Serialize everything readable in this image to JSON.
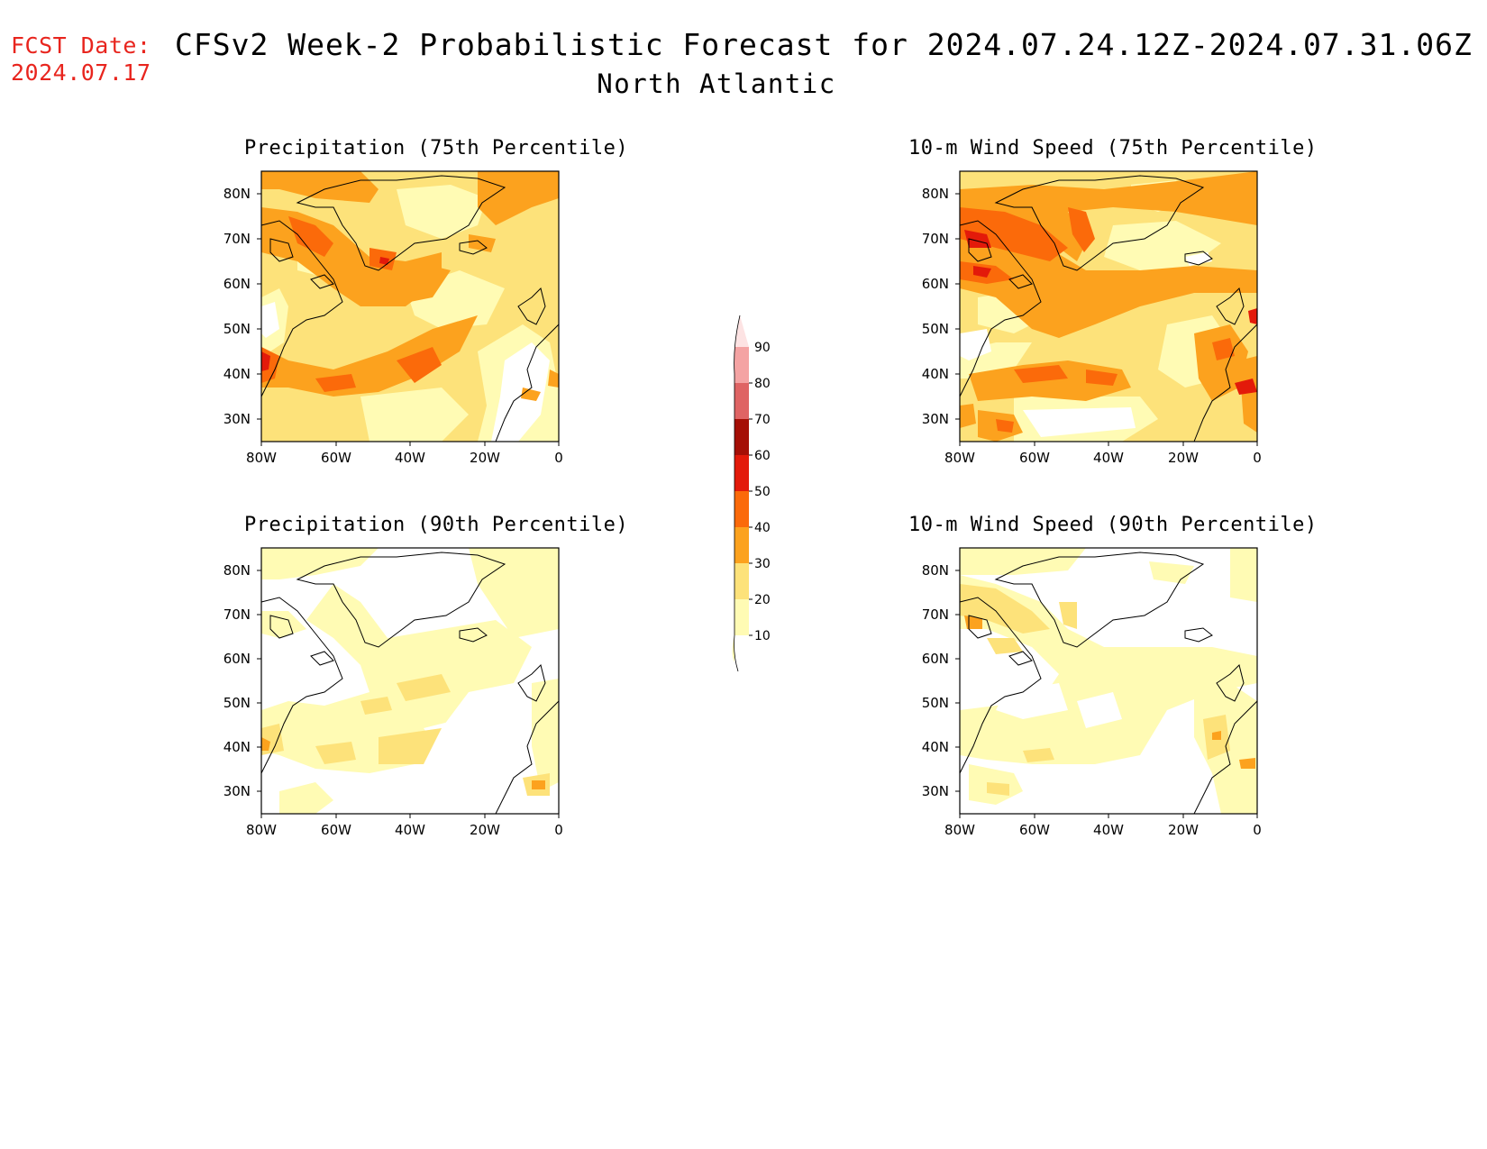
{
  "header": {
    "fcst_label": "FCST Date:",
    "fcst_date": "2024.07.17",
    "title": "CFSv2 Week-2 Probabilistic Forecast for 2024.07.24.12Z-2024.07.31.06Z",
    "region": "North Atlantic"
  },
  "panels": [
    {
      "id": "precip-75",
      "title": "Precipitation (75th Percentile)"
    },
    {
      "id": "wind-75",
      "title": "10-m Wind Speed (75th Percentile)"
    },
    {
      "id": "precip-90",
      "title": "Precipitation (90th Percentile)"
    },
    {
      "id": "wind-90",
      "title": "10-m Wind Speed (90th Percentile)"
    }
  ],
  "axes": {
    "lat_labels": [
      "80N",
      "70N",
      "60N",
      "50N",
      "40N",
      "30N"
    ],
    "lon_labels": [
      "80W",
      "60W",
      "40W",
      "20W",
      "0"
    ]
  },
  "colorbar": {
    "levels": [
      "10",
      "20",
      "30",
      "40",
      "50",
      "60",
      "70",
      "80",
      "90"
    ],
    "colors": [
      "#fffbb4",
      "#fde27a",
      "#fca21e",
      "#fb6a0a",
      "#e31a0a",
      "#a50f06",
      "#df6464",
      "#f4a3a3",
      "#fde3e3"
    ]
  }
}
